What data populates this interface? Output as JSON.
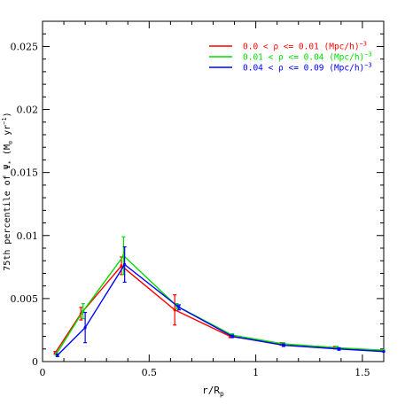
{
  "chart_data": {
    "type": "line",
    "xlabel": "r/R",
    "xlabel_sub": "p",
    "ylabel_parts": {
      "pre": "75th percentile of Ψ",
      "sub": "*",
      "unit_open": " (M",
      "unit_sub": "⊙",
      "unit_mid": " yr",
      "unit_sup": "−1",
      "unit_close": ")"
    },
    "xlim": [
      0,
      1.6
    ],
    "ylim": [
      0,
      0.027
    ],
    "x_ticks": [
      0,
      0.5,
      1,
      1.5
    ],
    "x_tick_labels": [
      "0",
      "0.5",
      "1",
      "1.5"
    ],
    "y_ticks": [
      0,
      0.005,
      0.01,
      0.015,
      0.02,
      0.025
    ],
    "y_tick_labels": [
      "0",
      "0.005",
      "0.01",
      "0.015",
      "0.02",
      "0.025"
    ],
    "legend_position": "top-right",
    "series": [
      {
        "name": "0.0 < ρ <= 0.01 (Mpc/h)",
        "legend_text": "0.0 < ρ <= 0.01 (Mpc/h)",
        "legend_sup": "−3",
        "color": "#ff0000",
        "x": [
          0.06,
          0.18,
          0.37,
          0.62,
          0.88,
          1.12,
          1.37,
          1.6
        ],
        "y": [
          0.0007,
          0.0038,
          0.0076,
          0.0041,
          0.002,
          0.0014,
          0.0011,
          0.0008
        ],
        "err": [
          0.0001,
          0.0005,
          0.0007,
          0.0012,
          0.0001,
          0.0001,
          0.0001,
          0
        ]
      },
      {
        "name": "0.01 < ρ <= 0.04 (Mpc/h)",
        "legend_text": "0.01 < ρ <= 0.04 (Mpc/h)",
        "legend_sup": "−3",
        "color": "#00dd00",
        "x": [
          0.065,
          0.19,
          0.38,
          0.63,
          0.89,
          1.13,
          1.38,
          1.6
        ],
        "y": [
          0.0006,
          0.004,
          0.0084,
          0.0044,
          0.0021,
          0.0014,
          0.0011,
          0.0009
        ],
        "err": [
          0.0001,
          0.0006,
          0.0015,
          0.0002,
          0.0001,
          0.0001,
          0.0001,
          0
        ]
      },
      {
        "name": "0.04 < ρ <= 0.09 (Mpc/h)",
        "legend_text": "0.04 < ρ <= 0.09 (Mpc/h)",
        "legend_sup": "−3",
        "color": "#0000ff",
        "x": [
          0.07,
          0.2,
          0.385,
          0.64,
          0.89,
          1.13,
          1.39,
          1.6
        ],
        "y": [
          0.0005,
          0.0027,
          0.0077,
          0.0043,
          0.002,
          0.0013,
          0.001,
          0.0008
        ],
        "err": [
          0.0001,
          0.0012,
          0.0014,
          0.0002,
          0.0001,
          0.0001,
          0.0001,
          0
        ]
      }
    ]
  }
}
